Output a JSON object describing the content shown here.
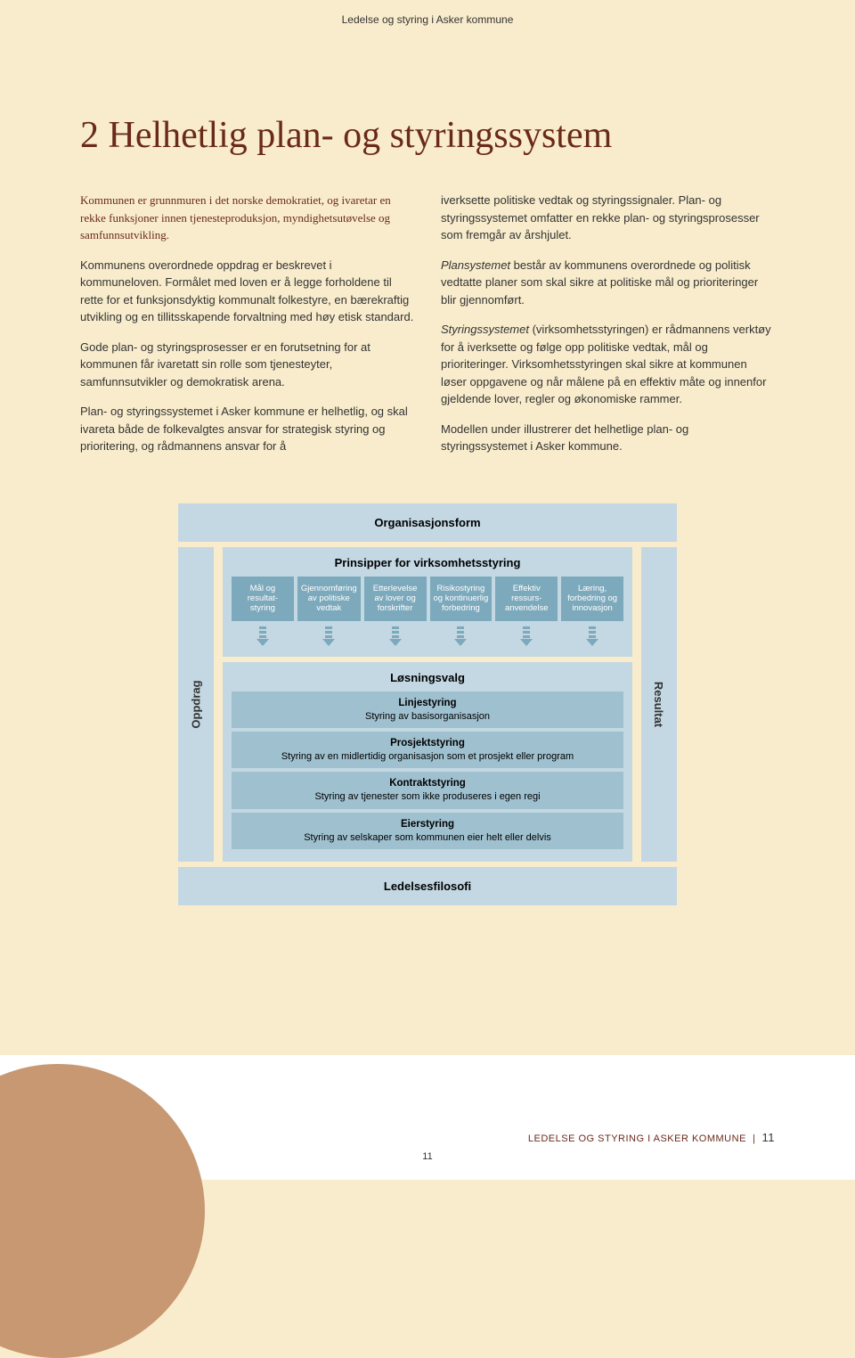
{
  "header": "Ledelse og styring i Asker kommune",
  "title": "2 Helhetlig plan- og styringssystem",
  "left_col": {
    "intro": "Kommunen er grunnmuren i det norske demokratiet, og ivaretar en rekke funksjoner innen tjenesteproduksjon, myndighetsutøvelse og samfunnsutvikling.",
    "p1": "Kommunens overordnede oppdrag er beskrevet i kommuneloven. Formålet med loven er å legge forholdene til rette for et funksjonsdyktig kommunalt folkestyre, en bærekraftig utvikling og en tillitsskapende forvaltning med høy etisk standard.",
    "p2": "Gode plan- og styringsprosesser er en forutsetning for at kommunen får ivaretatt sin rolle som tjenesteyter, samfunnsutvikler og demokratisk arena.",
    "p3": "Plan- og styringssystemet i Asker kommune er helhetlig, og skal ivareta både de folkevalgtes ansvar for strategisk styring og prioritering, og rådmannens ansvar for å"
  },
  "right_col": {
    "p1": "iverksette politiske vedtak og styringssignaler. Plan- og styringssystemet omfatter en rekke plan- og styringsprosesser som fremgår av årshjulet.",
    "p2_pre": "Plansystemet",
    "p2": " består av kommunens overordnede og politisk vedtatte planer som skal sikre at politiske mål og prioriteringer blir gjennomført.",
    "p3_pre": "Styringssystemet",
    "p3": " (virksomhetsstyringen) er rådmannens verktøy for å iverksette og følge opp politiske vedtak, mål og prioriteringer. Virksomhetsstyringen skal sikre at kommunen løser oppgavene og når målene på en effektiv måte og innenfor gjeldende lover, regler og økonomiske rammer.",
    "p4": "Modellen under illustrerer det helhetlige plan- og styringssystemet i Asker kommune."
  },
  "diagram": {
    "side_left": "Oppdrag",
    "side_right": "Resultat",
    "top_band": "Organisasjonsform",
    "principles_title": "Prinsipper for virksomhetsstyring",
    "chips": [
      "Mål og resultat-styring",
      "Gjennomføring av politiske vedtak",
      "Etterlevelse av lover og forskrifter",
      "Risikostyring og kontinuerlig forbedring",
      "Effektiv ressurs-anvendelse",
      "Læring, forbedring og innovasjon"
    ],
    "solutions_title": "Løsningsvalg",
    "rows": [
      {
        "t": "Linjestyring",
        "d": "Styring av basisorganisasjon"
      },
      {
        "t": "Prosjektstyring",
        "d": "Styring av en midlertidig organisasjon som et prosjekt eller program"
      },
      {
        "t": "Kontraktstyring",
        "d": "Styring av tjenester som ikke produseres i egen regi"
      },
      {
        "t": "Eierstyring",
        "d": "Styring av selskaper som kommunen eier helt eller delvis"
      }
    ],
    "bottom_band": "Ledelsesfilosofi"
  },
  "footer": {
    "label": "LEDELSE OG STYRING I ASKER KOMMUNE",
    "page": "11",
    "center_page": "11"
  },
  "colors": {
    "bg": "#f9eccc",
    "heading": "#6a2a1a",
    "box_light": "#c3d8e3",
    "box_mid": "#9fc0cf",
    "chip": "#7ca9bc",
    "circle": "#c79871"
  }
}
